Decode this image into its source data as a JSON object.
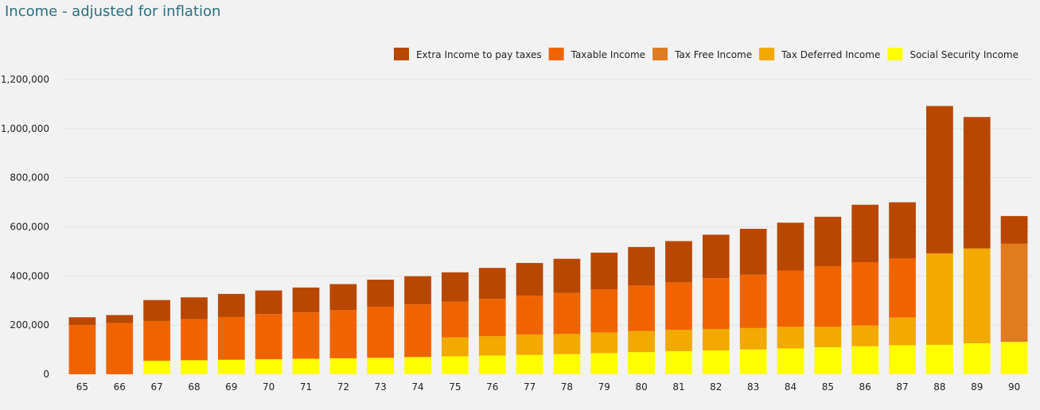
{
  "chart_data": {
    "type": "bar",
    "stacked": true,
    "title": "Income - adjusted for inflation",
    "xlabel": "",
    "ylabel": "",
    "ylim": [
      0,
      1200000
    ],
    "yticks": [
      0,
      200000,
      400000,
      600000,
      800000,
      1000000,
      1200000
    ],
    "ytick_labels": [
      "0",
      "200,000",
      "400,000",
      "600,000",
      "800,000",
      "1,000,000",
      "1,200,000"
    ],
    "grid": true,
    "legend_position": "top-right",
    "categories": [
      "65",
      "66",
      "67",
      "68",
      "69",
      "70",
      "71",
      "72",
      "73",
      "74",
      "75",
      "76",
      "77",
      "78",
      "79",
      "80",
      "81",
      "82",
      "83",
      "84",
      "85",
      "86",
      "87",
      "88",
      "89",
      "90"
    ],
    "series": [
      {
        "name": "Social Security Income",
        "color": "#ffff00",
        "values": [
          0,
          0,
          55000,
          57000,
          59000,
          61000,
          63000,
          65000,
          67000,
          70000,
          73000,
          76000,
          79000,
          82000,
          86000,
          90000,
          94000,
          97000,
          101000,
          105000,
          110000,
          114000,
          118000,
          120000,
          126000,
          132000
        ]
      },
      {
        "name": "Tax Deferred Income",
        "color": "#f2a900",
        "values": [
          0,
          0,
          0,
          0,
          0,
          0,
          0,
          0,
          0,
          0,
          77000,
          79000,
          83000,
          82000,
          84000,
          86000,
          87000,
          87000,
          87000,
          88000,
          83000,
          85000,
          113000,
          372000,
          386000,
          0
        ]
      },
      {
        "name": "Tax Free Income",
        "color": "#e07b1f",
        "values": [
          0,
          0,
          0,
          0,
          0,
          0,
          0,
          0,
          0,
          0,
          0,
          0,
          0,
          0,
          0,
          0,
          0,
          0,
          0,
          0,
          0,
          0,
          0,
          0,
          0,
          400000
        ]
      },
      {
        "name": "Taxable Income",
        "color": "#f06400",
        "values": [
          200000,
          208000,
          162000,
          167000,
          174000,
          184000,
          189000,
          196000,
          208000,
          214000,
          145000,
          152000,
          158000,
          167000,
          176000,
          185000,
          193000,
          207000,
          217000,
          229000,
          247000,
          257000,
          240000,
          0,
          0,
          0
        ]
      },
      {
        "name": "Extra Income to pay taxes",
        "color": "#b84800",
        "values": [
          32000,
          33000,
          85000,
          89000,
          94000,
          96000,
          101000,
          106000,
          110000,
          115000,
          120000,
          126000,
          133000,
          139000,
          149000,
          157000,
          168000,
          177000,
          187000,
          195000,
          201000,
          234000,
          229000,
          600000,
          535000,
          112000
        ]
      }
    ],
    "legend_order": [
      "Extra Income to pay taxes",
      "Taxable Income",
      "Tax Free Income",
      "Tax Deferred Income",
      "Social Security Income"
    ]
  }
}
